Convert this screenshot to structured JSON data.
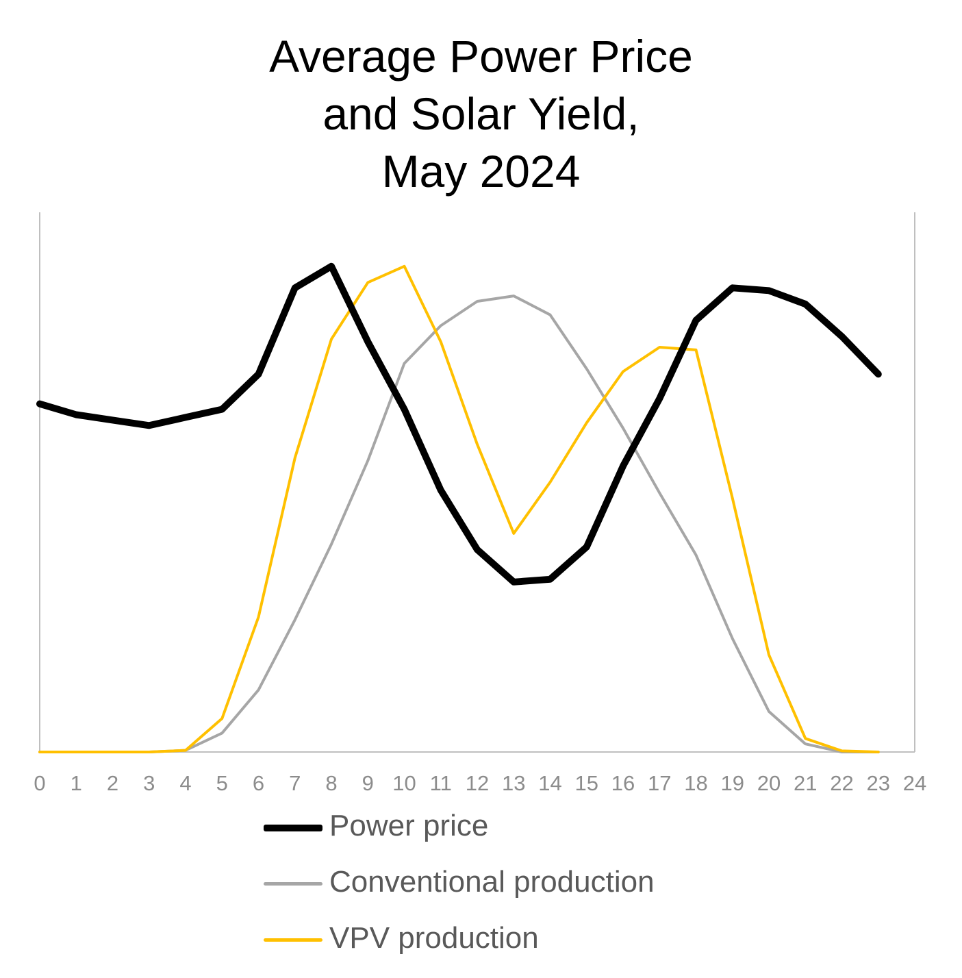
{
  "chart_data": {
    "type": "line",
    "title": [
      "Average Power Price",
      "and Solar Yield,",
      "May 2024"
    ],
    "xlabel": "",
    "ylabel": "",
    "x_ticks": [
      0,
      1,
      2,
      3,
      4,
      5,
      6,
      7,
      8,
      9,
      10,
      11,
      12,
      13,
      14,
      15,
      16,
      17,
      18,
      19,
      20,
      21,
      22,
      23,
      24
    ],
    "xlim": [
      0,
      24
    ],
    "ylim": [
      0,
      100
    ],
    "grid": false,
    "y_axis_labels": false,
    "legend_position": "bottom",
    "series": [
      {
        "name": "Power price",
        "color": "#000000",
        "x": [
          0,
          1,
          2,
          3,
          4,
          5,
          6,
          7,
          8,
          9,
          10,
          11,
          12,
          13,
          14,
          15,
          16,
          17,
          18,
          19,
          20,
          21,
          22,
          23
        ],
        "values": [
          64.5,
          62.5,
          61.5,
          60.5,
          62,
          63.5,
          70,
          86,
          90,
          76,
          63.5,
          48.5,
          37.5,
          31.5,
          32,
          38,
          53,
          65.5,
          80,
          86,
          85.5,
          83,
          77,
          70
        ]
      },
      {
        "name": "Conventional production",
        "color": "#a6a6a6",
        "x": [
          0,
          1,
          2,
          3,
          4,
          5,
          6,
          7,
          8,
          9,
          10,
          11,
          12,
          13,
          14,
          15,
          16,
          17,
          18,
          19,
          20,
          21,
          22,
          23
        ],
        "values": [
          0,
          0,
          0,
          0,
          0.3,
          3.5,
          11.5,
          24.5,
          38.5,
          54,
          72,
          79,
          83.5,
          84.5,
          81,
          71,
          60,
          48,
          36.5,
          21,
          7.5,
          1.5,
          0,
          0
        ]
      },
      {
        "name": "VPV production",
        "color": "#ffc000",
        "x": [
          0,
          1,
          2,
          3,
          4,
          5,
          6,
          7,
          8,
          9,
          10,
          11,
          12,
          13,
          14,
          15,
          16,
          17,
          18,
          19,
          20,
          21,
          22,
          23
        ],
        "values": [
          0,
          0,
          0,
          0,
          0.3,
          6.2,
          25,
          54.5,
          76.5,
          87,
          90,
          76,
          57,
          40.5,
          50,
          61,
          70.5,
          75,
          74.5,
          47,
          18,
          2.5,
          0.2,
          0
        ]
      }
    ]
  }
}
